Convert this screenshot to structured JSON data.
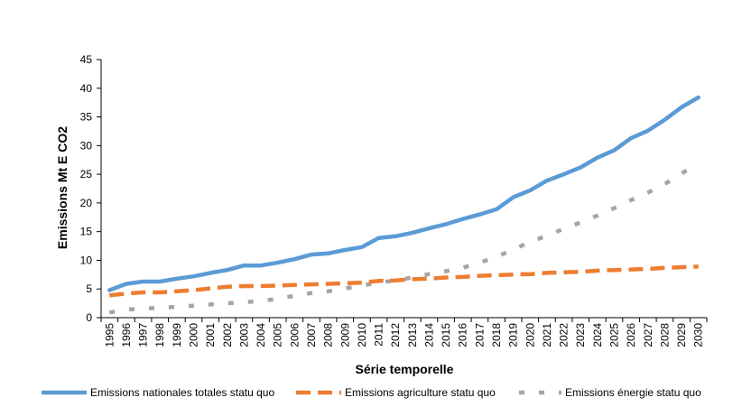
{
  "chart_data": {
    "type": "line",
    "title": "",
    "xlabel": "Série temporelle",
    "ylabel": "Emissions Mt E CO2",
    "ylim": [
      0,
      45
    ],
    "yticks": [
      0,
      5,
      10,
      15,
      20,
      25,
      30,
      35,
      40,
      45
    ],
    "grid": false,
    "legend_position": "bottom",
    "categories": [
      "1995",
      "1996",
      "1997",
      "1998",
      "1999",
      "2000",
      "2001",
      "2002",
      "2003",
      "2004",
      "2005",
      "2006",
      "2007",
      "2008",
      "2009",
      "2010",
      "2011",
      "2012",
      "2013",
      "2014",
      "2015",
      "2016",
      "2017",
      "2018",
      "2019",
      "2020",
      "2021",
      "2022",
      "2023",
      "2024",
      "2025",
      "2026",
      "2027",
      "2028",
      "2029",
      "2030"
    ],
    "series": [
      {
        "name": "Emissions nationales totales statu quo",
        "color": "#5B9BD5",
        "dash": "solid",
        "values": [
          4.8,
          5.9,
          6.3,
          6.3,
          6.8,
          7.2,
          7.8,
          8.3,
          9.1,
          9.1,
          9.6,
          10.2,
          11.0,
          11.2,
          11.8,
          12.3,
          13.9,
          14.2,
          14.8,
          15.6,
          16.3,
          17.2,
          18.0,
          18.9,
          21.0,
          22.2,
          23.9,
          25.0,
          26.2,
          27.9,
          29.2,
          31.3,
          32.6,
          34.5,
          36.7,
          38.4
        ]
      },
      {
        "name": "Emissions agriculture statu quo",
        "color": "#ED7D31",
        "dash": "dashed",
        "values": [
          3.9,
          4.2,
          4.4,
          4.4,
          4.6,
          4.8,
          5.1,
          5.4,
          5.5,
          5.5,
          5.6,
          5.7,
          5.8,
          5.9,
          6.0,
          6.1,
          6.4,
          6.5,
          6.7,
          6.8,
          7.0,
          7.1,
          7.3,
          7.4,
          7.5,
          7.6,
          7.8,
          7.9,
          8.0,
          8.2,
          8.3,
          8.4,
          8.5,
          8.7,
          8.8,
          8.9
        ]
      },
      {
        "name": "Emissions énergie statu quo",
        "color": "#A5A5A5",
        "dash": "dotted",
        "values": [
          0.9,
          1.4,
          1.6,
          1.7,
          1.9,
          2.1,
          2.3,
          2.5,
          2.7,
          2.9,
          3.3,
          3.8,
          4.3,
          4.6,
          5.1,
          5.6,
          6.1,
          6.5,
          7.0,
          7.6,
          8.1,
          8.7,
          9.6,
          10.6,
          11.9,
          13.2,
          14.3,
          15.5,
          16.6,
          17.8,
          19.1,
          20.5,
          21.8,
          23.3,
          25.1,
          27.1
        ]
      }
    ]
  }
}
